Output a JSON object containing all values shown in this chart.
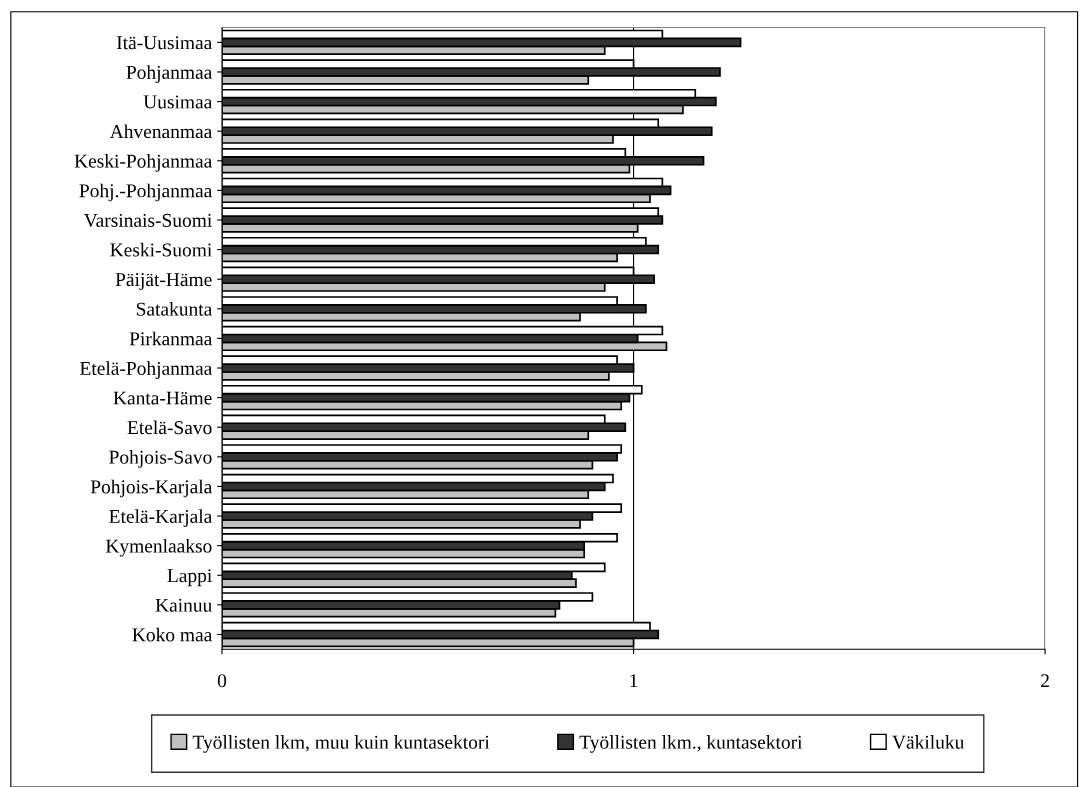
{
  "chart_data": {
    "type": "bar",
    "orientation": "horizontal",
    "categories": [
      "Itä-Uusimaa",
      "Pohjanmaa",
      "Uusimaa",
      "Ahvenanmaa",
      "Keski-Pohjanmaa",
      "Pohj.-Pohjanmaa",
      "Varsinais-Suomi",
      "Keski-Suomi",
      "Päijät-Häme",
      "Satakunta",
      "Pirkanmaa",
      "Etelä-Pohjanmaa",
      "Kanta-Häme",
      "Etelä-Savo",
      "Pohjois-Savo",
      "Pohjois-Karjala",
      "Etelä-Karjala",
      "Kymenlaakso",
      "Lappi",
      "Kainuu",
      "Koko maa"
    ],
    "series": [
      {
        "name": "Työllisten lkm, muu kuin kuntasektori",
        "color": "#c0c0c0",
        "values": [
          0.93,
          0.89,
          1.12,
          0.95,
          0.99,
          1.04,
          1.01,
          0.96,
          0.93,
          0.87,
          1.08,
          0.94,
          0.97,
          0.89,
          0.9,
          0.89,
          0.87,
          0.88,
          0.86,
          0.81,
          1.0
        ]
      },
      {
        "name": "Työllisten lkm., kuntasektori",
        "color": "#333333",
        "values": [
          1.26,
          1.21,
          1.2,
          1.19,
          1.17,
          1.09,
          1.07,
          1.06,
          1.05,
          1.03,
          1.01,
          1.0,
          0.99,
          0.98,
          0.96,
          0.93,
          0.9,
          0.88,
          0.85,
          0.82,
          1.06
        ]
      },
      {
        "name": "Väkiluku",
        "color": "#ffffff",
        "values": [
          1.07,
          1.0,
          1.15,
          1.06,
          0.98,
          1.07,
          1.06,
          1.03,
          1.0,
          0.96,
          1.07,
          0.96,
          1.02,
          0.93,
          0.97,
          0.95,
          0.97,
          0.96,
          0.93,
          0.9,
          1.04
        ]
      }
    ],
    "xlim": [
      0,
      2
    ],
    "xticks": [
      0,
      1,
      2
    ],
    "grid": "x",
    "legend": "bottom"
  }
}
